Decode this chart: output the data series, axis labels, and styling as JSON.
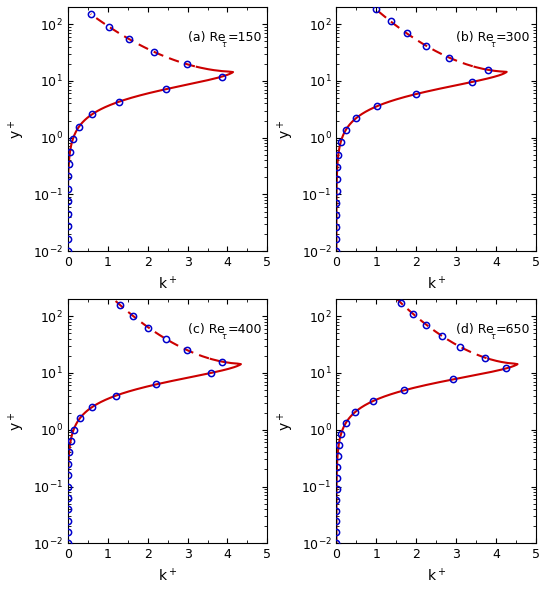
{
  "Re_list": [
    150,
    300,
    400,
    650
  ],
  "labels": [
    "(a) Re =150",
    "(b) Re =300",
    "(c) Re =400",
    "(d) Re =650"
  ],
  "tau_label": "τ",
  "xlim": [
    0,
    5
  ],
  "ylim_low": 0.01,
  "ylim_high": 200,
  "xlabel": "k",
  "ylabel": "y",
  "line_color": "#CC0000",
  "marker_color": "#0000CC",
  "marker_size": 4.5,
  "line_width": 1.5,
  "figsize": [
    5.47,
    5.91
  ],
  "dpi": 100
}
